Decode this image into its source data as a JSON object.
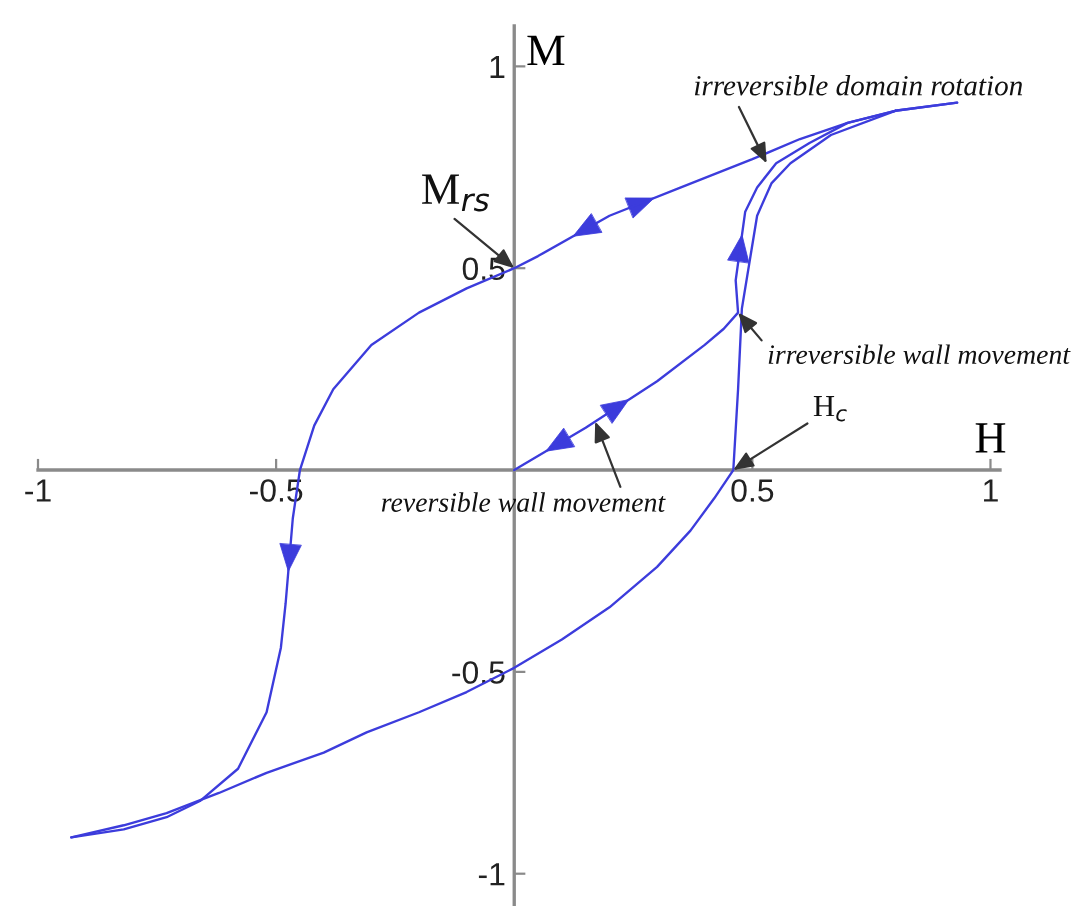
{
  "chart_data": {
    "type": "line",
    "xlabel": "H",
    "ylabel": "M",
    "xlim": [
      -1,
      1.02
    ],
    "ylim": [
      -1.08,
      1.1
    ],
    "xticks": [
      -1,
      -0.5,
      0.5,
      1
    ],
    "yticks": [
      -1,
      -0.5,
      0.5,
      1
    ],
    "series": [
      {
        "color": "#3c3cdc",
        "x": [
          0.93,
          0.8,
          0.7,
          0.6,
          0.5,
          0.35,
          0.2,
          0.05,
          0,
          -0.1,
          -0.2,
          -0.3,
          -0.38,
          -0.42,
          -0.45,
          -0.465,
          -0.48,
          -0.49,
          -0.52,
          -0.58,
          -0.66,
          -0.73,
          -0.82,
          -0.93
        ],
        "values": [
          0.91,
          0.89,
          0.86,
          0.82,
          0.77,
          0.7,
          0.63,
          0.53,
          0.5,
          0.45,
          0.39,
          0.31,
          0.2,
          0.11,
          0,
          -0.12,
          -0.33,
          -0.44,
          -0.6,
          -0.74,
          -0.82,
          -0.86,
          -0.89,
          -0.91
        ]
      },
      {
        "color": "#3c3cdc",
        "x": [
          -0.93,
          -0.82,
          -0.73,
          -0.62,
          -0.52,
          -0.4,
          -0.31,
          -0.2,
          -0.1,
          0,
          0.1,
          0.2,
          0.3,
          0.37,
          0.42,
          0.46,
          0.47,
          0.478,
          0.51,
          0.54,
          0.58,
          0.665,
          0.8
        ],
        "values": [
          -0.91,
          -0.88,
          -0.85,
          -0.8,
          -0.75,
          -0.7,
          -0.65,
          -0.6,
          -0.55,
          -0.49,
          -0.42,
          -0.34,
          -0.24,
          -0.15,
          -0.07,
          0,
          0.2,
          0.4,
          0.63,
          0.71,
          0.76,
          0.83,
          0.89
        ]
      },
      {
        "color": "#3c3cdc",
        "x": [
          0,
          0.15,
          0.3,
          0.4,
          0.44,
          0.47,
          0.465,
          0.485,
          0.51,
          0.55,
          0.62,
          0.7,
          0.8,
          0.93
        ],
        "values": [
          0,
          0.105,
          0.22,
          0.31,
          0.35,
          0.39,
          0.47,
          0.64,
          0.7,
          0.76,
          0.81,
          0.86,
          0.89,
          0.91
        ]
      }
    ],
    "annotations": [
      {
        "text": "M$_{rs}$",
        "x": 0,
        "y": 0.5
      },
      {
        "text": "irreversible domain rotation",
        "x": 0.53,
        "y": 0.76
      },
      {
        "text": "irreversible wall movement",
        "x": 0.47,
        "y": 0.39
      },
      {
        "text": "H$_{c}$",
        "x": 0.46,
        "y": 0
      },
      {
        "text": "reversible wall movement",
        "x": 0.17,
        "y": 0.12
      }
    ]
  }
}
